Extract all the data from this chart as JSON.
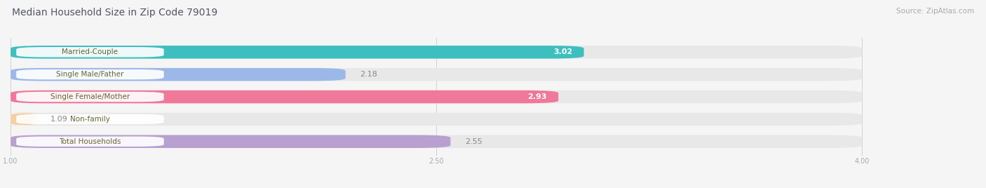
{
  "title": "Median Household Size in Zip Code 79019",
  "source": "Source: ZipAtlas.com",
  "categories": [
    "Married-Couple",
    "Single Male/Father",
    "Single Female/Mother",
    "Non-family",
    "Total Households"
  ],
  "values": [
    3.02,
    2.18,
    2.93,
    1.09,
    2.55
  ],
  "bar_colors": [
    "#3dbfbf",
    "#9bb8e8",
    "#f07898",
    "#f5d0a0",
    "#b8a0d0"
  ],
  "bar_bg_color": "#e8e8e8",
  "label_bg_color": "#ffffff",
  "xlim_min": 1.0,
  "xlim_max": 4.0,
  "xticks": [
    1.0,
    2.5,
    4.0
  ],
  "title_fontsize": 10,
  "source_fontsize": 7.5,
  "label_fontsize": 7.5,
  "value_fontsize": 8,
  "background_color": "#f5f5f5",
  "bar_height": 0.58,
  "label_text_color": "#666633",
  "value_text_color": "#888888",
  "title_color": "#555566"
}
